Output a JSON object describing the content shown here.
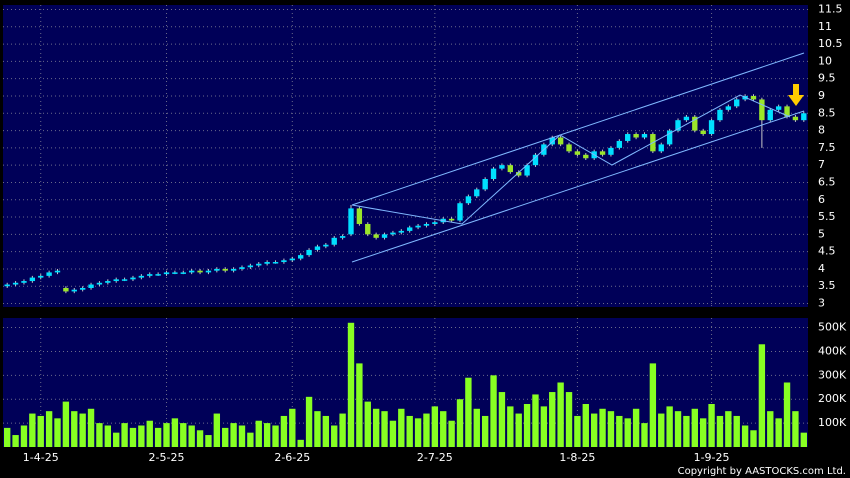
{
  "chart_data": [
    {
      "type": "candlestick",
      "up_color": "#00e0ff",
      "down_color": "#9ae62a",
      "grid": true,
      "ylim": [
        2.9,
        11.63
      ],
      "yticks": [
        3,
        3.5,
        4,
        4.5,
        5,
        5.5,
        6,
        6.5,
        7,
        7.5,
        8,
        8.5,
        9,
        9.5,
        10,
        10.5,
        11,
        11.5
      ],
      "xlim": [
        -0.5,
        95.5
      ],
      "open": [
        3.5,
        3.55,
        3.6,
        3.65,
        3.75,
        3.8,
        3.9,
        3.45,
        3.35,
        3.4,
        3.45,
        3.55,
        3.6,
        3.65,
        3.7,
        3.7,
        3.75,
        3.8,
        3.85,
        3.85,
        3.9,
        3.9,
        3.9,
        3.95,
        3.9,
        3.95,
        4.0,
        3.95,
        4.0,
        4.05,
        4.1,
        4.15,
        4.2,
        4.2,
        4.25,
        4.3,
        4.4,
        4.55,
        4.65,
        4.7,
        4.9,
        5.0,
        5.75,
        5.3,
        5.0,
        4.9,
        5.0,
        5.05,
        5.1,
        5.2,
        5.25,
        5.3,
        5.35,
        5.45,
        5.4,
        5.9,
        6.1,
        6.3,
        6.6,
        6.9,
        7.0,
        6.8,
        6.7,
        7.0,
        7.3,
        7.6,
        7.8,
        7.6,
        7.4,
        7.3,
        7.2,
        7.4,
        7.3,
        7.5,
        7.7,
        7.9,
        7.8,
        7.9,
        7.4,
        7.6,
        8.0,
        8.3,
        8.4,
        8.0,
        7.9,
        8.3,
        8.6,
        8.7,
        8.9,
        9.0,
        8.9,
        8.3,
        8.6,
        8.7,
        8.4,
        8.3
      ],
      "high": [
        3.6,
        3.65,
        3.7,
        3.8,
        3.85,
        3.95,
        4.0,
        3.5,
        3.45,
        3.5,
        3.6,
        3.65,
        3.7,
        3.75,
        3.75,
        3.8,
        3.85,
        3.9,
        3.9,
        3.95,
        3.95,
        3.95,
        4.0,
        4.0,
        4.0,
        4.05,
        4.05,
        4.05,
        4.1,
        4.15,
        4.2,
        4.25,
        4.25,
        4.3,
        4.35,
        4.45,
        4.6,
        4.7,
        4.75,
        4.95,
        5.0,
        5.85,
        5.8,
        5.35,
        5.05,
        5.05,
        5.1,
        5.15,
        5.25,
        5.3,
        5.35,
        5.4,
        5.5,
        5.5,
        5.95,
        6.15,
        6.35,
        6.65,
        6.95,
        7.05,
        7.05,
        6.85,
        7.05,
        7.35,
        7.65,
        7.85,
        7.85,
        7.65,
        7.45,
        7.35,
        7.45,
        7.45,
        7.55,
        7.75,
        7.95,
        7.95,
        7.95,
        7.95,
        7.65,
        8.05,
        8.35,
        8.45,
        8.45,
        8.05,
        8.35,
        8.65,
        8.75,
        8.95,
        9.05,
        9.05,
        8.95,
        8.65,
        8.75,
        8.75,
        8.45,
        8.55
      ],
      "low": [
        3.45,
        3.5,
        3.55,
        3.6,
        3.7,
        3.75,
        3.85,
        3.3,
        3.3,
        3.35,
        3.4,
        3.5,
        3.55,
        3.6,
        3.65,
        3.65,
        3.7,
        3.75,
        3.8,
        3.8,
        3.85,
        3.85,
        3.85,
        3.85,
        3.85,
        3.9,
        3.9,
        3.9,
        3.95,
        4.0,
        4.05,
        4.1,
        4.15,
        4.15,
        4.2,
        4.25,
        4.35,
        4.5,
        4.6,
        4.65,
        4.85,
        4.95,
        5.25,
        4.95,
        4.85,
        4.85,
        4.95,
        5.0,
        5.05,
        5.15,
        5.2,
        5.25,
        5.3,
        5.35,
        5.35,
        5.85,
        6.05,
        6.25,
        6.55,
        6.85,
        6.75,
        6.65,
        6.65,
        6.95,
        7.25,
        7.55,
        7.55,
        7.35,
        7.25,
        7.15,
        7.15,
        7.25,
        7.25,
        7.45,
        7.65,
        7.75,
        7.75,
        7.35,
        7.35,
        7.55,
        7.95,
        8.25,
        7.95,
        7.85,
        7.85,
        8.25,
        8.55,
        8.65,
        8.85,
        8.85,
        7.5,
        8.25,
        8.55,
        8.35,
        8.25,
        8.25
      ],
      "close": [
        3.55,
        3.6,
        3.65,
        3.75,
        3.8,
        3.9,
        3.95,
        3.35,
        3.4,
        3.45,
        3.55,
        3.6,
        3.65,
        3.7,
        3.7,
        3.75,
        3.8,
        3.85,
        3.85,
        3.9,
        3.9,
        3.9,
        3.95,
        3.9,
        3.95,
        4.0,
        3.95,
        4.0,
        4.05,
        4.1,
        4.15,
        4.2,
        4.2,
        4.25,
        4.3,
        4.4,
        4.55,
        4.65,
        4.7,
        4.9,
        4.95,
        5.75,
        5.3,
        5.0,
        4.9,
        5.0,
        5.05,
        5.1,
        5.2,
        5.25,
        5.3,
        5.35,
        5.45,
        5.4,
        5.9,
        6.1,
        6.3,
        6.6,
        6.9,
        7.0,
        6.8,
        6.7,
        7.0,
        7.3,
        7.6,
        7.8,
        7.6,
        7.4,
        7.3,
        7.2,
        7.4,
        7.3,
        7.5,
        7.7,
        7.9,
        7.8,
        7.9,
        7.4,
        7.6,
        8.0,
        8.3,
        8.4,
        8.0,
        7.9,
        8.3,
        8.6,
        8.7,
        8.9,
        9.0,
        8.9,
        8.3,
        8.6,
        8.7,
        8.4,
        8.3,
        8.5
      ]
    },
    {
      "type": "bar",
      "color": "#88ff22",
      "grid": true,
      "ylim": [
        0,
        540000
      ],
      "yticks": [
        {
          "value": 100000,
          "label": "100K"
        },
        {
          "value": 200000,
          "label": "200K"
        },
        {
          "value": 300000,
          "label": "300K"
        },
        {
          "value": 400000,
          "label": "400K"
        },
        {
          "value": 500000,
          "label": "500K"
        }
      ],
      "xlim": [
        -0.5,
        95.5
      ],
      "xticks": [
        {
          "value": 4,
          "label": "1-4-25"
        },
        {
          "value": 19,
          "label": "2-5-25"
        },
        {
          "value": 34,
          "label": "2-6-25"
        },
        {
          "value": 51,
          "label": "2-7-25"
        },
        {
          "value": 68,
          "label": "1-8-25"
        },
        {
          "value": 84,
          "label": "1-9-25"
        }
      ],
      "values": [
        80000,
        50000,
        90000,
        140000,
        130000,
        150000,
        120000,
        190000,
        150000,
        140000,
        160000,
        100000,
        90000,
        60000,
        100000,
        80000,
        90000,
        110000,
        80000,
        100000,
        120000,
        100000,
        90000,
        70000,
        50000,
        140000,
        80000,
        100000,
        90000,
        60000,
        110000,
        100000,
        90000,
        130000,
        160000,
        30000,
        210000,
        150000,
        130000,
        90000,
        140000,
        520000,
        350000,
        190000,
        160000,
        150000,
        110000,
        160000,
        130000,
        120000,
        140000,
        170000,
        150000,
        110000,
        200000,
        290000,
        160000,
        130000,
        300000,
        230000,
        170000,
        140000,
        180000,
        220000,
        170000,
        230000,
        270000,
        230000,
        130000,
        180000,
        140000,
        160000,
        150000,
        130000,
        120000,
        160000,
        100000,
        350000,
        140000,
        170000,
        150000,
        130000,
        160000,
        120000,
        180000,
        130000,
        150000,
        130000,
        90000,
        70000,
        430000,
        150000,
        120000,
        270000,
        150000,
        60000
      ]
    }
  ],
  "copyright": "Copyright by AASTOCKS.com Ltd."
}
